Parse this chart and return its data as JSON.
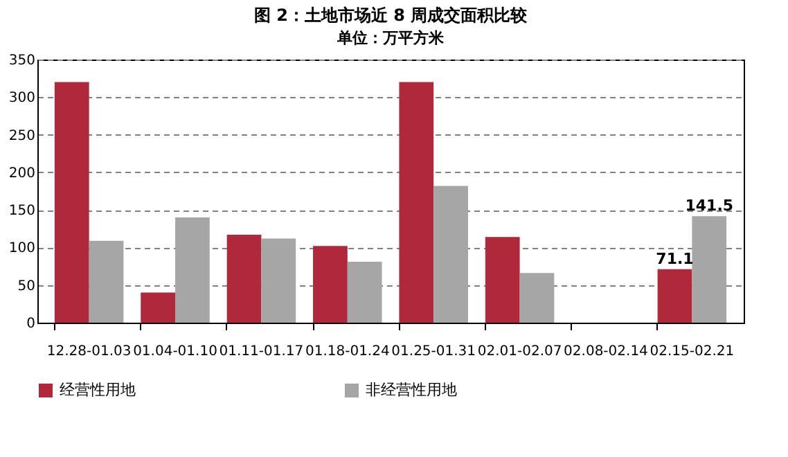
{
  "chart_data": {
    "type": "bar",
    "title": "图 2：土地市场近 8 周成交面积比较",
    "subtitle": "单位：万平方米",
    "categories": [
      "12.28-01.03",
      "01.04-01.10",
      "01.11-01.17",
      "01.18-01.24",
      "01.25-01.31",
      "02.01-02.07",
      "02.08-02.14",
      "02.15-02.21"
    ],
    "series": [
      {
        "name": "经营性用地",
        "color": "#b0293a",
        "values": [
          320,
          40,
          117,
          102,
          320,
          114,
          null,
          71.1
        ],
        "value_labels": [
          null,
          null,
          null,
          null,
          null,
          null,
          null,
          "71.1"
        ]
      },
      {
        "name": "非经营性用地",
        "color": "#a6a6a6",
        "values": [
          109,
          140,
          112,
          81,
          182,
          66,
          null,
          141.5
        ],
        "value_labels": [
          null,
          null,
          null,
          null,
          null,
          null,
          null,
          "141.5"
        ]
      }
    ],
    "ylim": [
      0,
      350
    ],
    "yticks": [
      0,
      50,
      100,
      150,
      200,
      250,
      300,
      350
    ],
    "grid": "y",
    "legend": "bottom"
  }
}
